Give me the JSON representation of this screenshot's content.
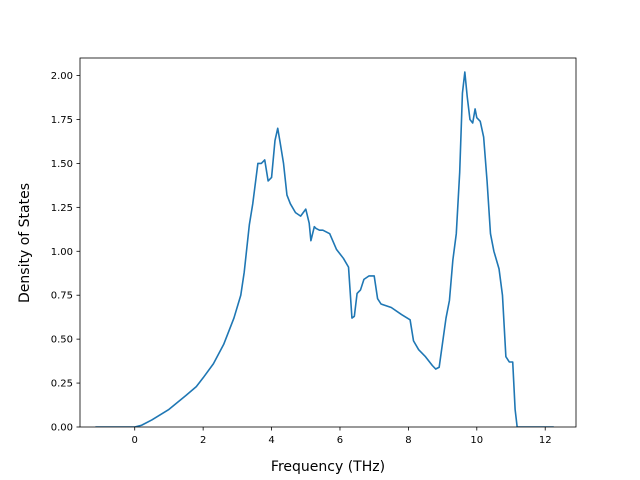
{
  "chart_data": {
    "type": "line",
    "title": "",
    "xlabel": "Frequency (THz)",
    "ylabel": "Density of States",
    "xlim": [
      -1.6,
      12.9
    ],
    "ylim": [
      0.0,
      2.1
    ],
    "x_ticks": [
      0,
      2,
      4,
      6,
      8,
      10,
      12
    ],
    "y_ticks": [
      0.0,
      0.25,
      0.5,
      0.75,
      1.0,
      1.25,
      1.5,
      1.75,
      2.0
    ],
    "x_tick_labels": [
      "0",
      "2",
      "4",
      "6",
      "8",
      "10",
      "12"
    ],
    "y_tick_labels": [
      "0.00",
      "0.25",
      "0.50",
      "0.75",
      "1.00",
      "1.25",
      "1.50",
      "1.75",
      "2.00"
    ],
    "grid": false,
    "series": [
      {
        "color": "#1f77b4",
        "x": [
          -1.15,
          0.0,
          0.2,
          0.5,
          1.0,
          1.5,
          1.8,
          2.0,
          2.3,
          2.6,
          2.9,
          3.1,
          3.2,
          3.35,
          3.45,
          3.6,
          3.7,
          3.8,
          3.9,
          4.0,
          4.1,
          4.18,
          4.25,
          4.35,
          4.45,
          4.55,
          4.7,
          4.85,
          5.0,
          5.1,
          5.15,
          5.2,
          5.25,
          5.3,
          5.4,
          5.5,
          5.7,
          5.9,
          6.1,
          6.25,
          6.35,
          6.42,
          6.5,
          6.6,
          6.7,
          6.85,
          7.0,
          7.1,
          7.2,
          7.5,
          7.8,
          8.05,
          8.15,
          8.3,
          8.5,
          8.7,
          8.8,
          8.9,
          9.0,
          9.1,
          9.2,
          9.3,
          9.4,
          9.5,
          9.58,
          9.65,
          9.72,
          9.8,
          9.88,
          9.95,
          10.0,
          10.1,
          10.2,
          10.3,
          10.4,
          10.5,
          10.65,
          10.75,
          10.85,
          10.95,
          11.05,
          11.12,
          11.18,
          11.3,
          12.25
        ],
        "values": [
          0.0,
          0.0,
          0.01,
          0.04,
          0.1,
          0.18,
          0.23,
          0.28,
          0.36,
          0.47,
          0.62,
          0.75,
          0.88,
          1.15,
          1.27,
          1.5,
          1.5,
          1.52,
          1.4,
          1.42,
          1.63,
          1.7,
          1.62,
          1.5,
          1.32,
          1.27,
          1.22,
          1.2,
          1.24,
          1.16,
          1.06,
          1.1,
          1.14,
          1.13,
          1.12,
          1.12,
          1.1,
          1.01,
          0.96,
          0.91,
          0.62,
          0.63,
          0.76,
          0.78,
          0.84,
          0.86,
          0.86,
          0.73,
          0.7,
          0.68,
          0.64,
          0.61,
          0.49,
          0.44,
          0.4,
          0.35,
          0.33,
          0.34,
          0.48,
          0.62,
          0.72,
          0.95,
          1.1,
          1.45,
          1.9,
          2.02,
          1.88,
          1.75,
          1.73,
          1.81,
          1.76,
          1.74,
          1.65,
          1.4,
          1.1,
          1.0,
          0.9,
          0.75,
          0.4,
          0.37,
          0.37,
          0.1,
          0.0,
          0.0,
          0.0
        ]
      }
    ]
  }
}
